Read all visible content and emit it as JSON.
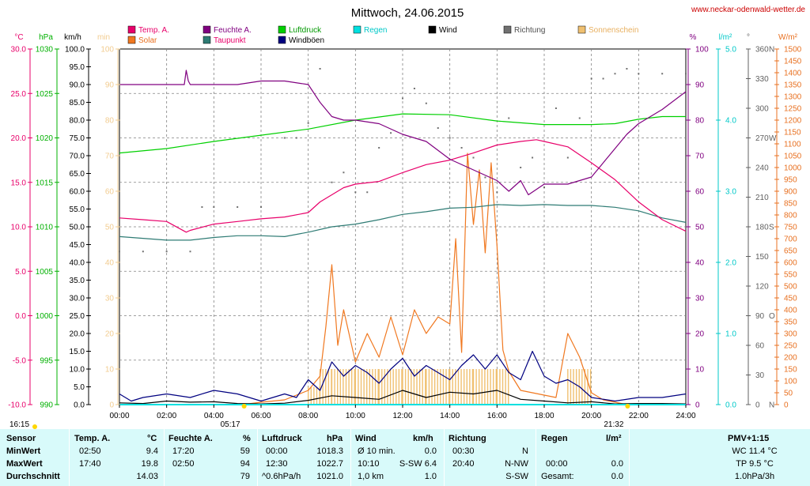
{
  "title": "Mittwoch, 24.06.2015",
  "source_url": "www.neckar-odenwald-wetter.de",
  "legend": [
    {
      "label": "Temp. A.",
      "color": "#e8006a",
      "labelColor": "#e8006a"
    },
    {
      "label": "Feuchte A.",
      "color": "#800080",
      "labelColor": "#800080"
    },
    {
      "label": "Luftdruck",
      "color": "#00d000",
      "labelColor": "#009900"
    },
    {
      "label": "Regen",
      "color": "#00e0e0",
      "labelColor": "#00c8c8"
    },
    {
      "label": "Wind",
      "color": "#000000",
      "labelColor": "#000000"
    },
    {
      "label": "Richtung",
      "color": "#707070",
      "labelColor": "#505050"
    },
    {
      "label": "Sonnenschein",
      "color": "#f0c070",
      "labelColor": "#e8b060"
    },
    {
      "label": "Solar",
      "color": "#f07820",
      "labelColor": "#e87020"
    },
    {
      "label": "Taupunkt",
      "color": "#2e7b74",
      "labelColor": "#e8006a"
    },
    {
      "label": "Windböen",
      "color": "#000080",
      "labelColor": "#000000"
    }
  ],
  "axis_units": {
    "temp": "°C",
    "press": "hPa",
    "wind": "km/h",
    "sun": "min",
    "hum": "%",
    "rain": "l/m²",
    "dir": "°",
    "solar": "W/m²"
  },
  "axis_ticks": {
    "temp": [
      "-10.0",
      "-5.0",
      "0.0",
      "5.0",
      "10.0",
      "15.0",
      "20.0",
      "25.0",
      "30.0"
    ],
    "press": [
      "990",
      "995",
      "1000",
      "1005",
      "1010",
      "1015",
      "1020",
      "1025",
      "1030"
    ],
    "wind": [
      "0.0",
      "5.0",
      "10.0",
      "15.0",
      "20.0",
      "25.0",
      "30.0",
      "35.0",
      "40.0",
      "45.0",
      "50.0",
      "55.0",
      "60.0",
      "65.0",
      "70.0",
      "75.0",
      "80.0",
      "85.0",
      "90.0",
      "95.0",
      "100.0"
    ],
    "sun": [
      "0",
      "10",
      "20",
      "30",
      "40",
      "50",
      "60",
      "70",
      "80",
      "90",
      "100"
    ],
    "hum": [
      "0",
      "10",
      "20",
      "30",
      "40",
      "50",
      "60",
      "70",
      "80",
      "90",
      "100"
    ],
    "rain": [
      "0.0",
      "1.0",
      "2.0",
      "3.0",
      "4.0",
      "5.0"
    ],
    "dir": [
      "0",
      "30",
      "60",
      "90",
      "120",
      "150",
      "180",
      "210",
      "240",
      "270",
      "300",
      "330",
      "360"
    ],
    "dir_letters": [
      "N",
      "O",
      "S",
      "W",
      "N"
    ],
    "solar": [
      "0",
      "50",
      "100",
      "150",
      "200",
      "250",
      "300",
      "350",
      "400",
      "450",
      "500",
      "550",
      "600",
      "650",
      "700",
      "750",
      "800",
      "850",
      "900",
      "950",
      "1000",
      "1050",
      "1100",
      "1150",
      "1200",
      "1250",
      "1300",
      "1350",
      "1400",
      "1450",
      "1500"
    ],
    "time": [
      "00:00",
      "02:00",
      "04:00",
      "06:00",
      "08:00",
      "10:00",
      "12:00",
      "14:00",
      "16:00",
      "18:00",
      "20:00",
      "22:00",
      "24:00"
    ]
  },
  "sun_events": {
    "sunrise": "05:17",
    "sunset": "21:32",
    "daylength": "16:15"
  },
  "chart_data": {
    "type": "line",
    "title": "Mittwoch, 24.06.2015",
    "x_range": [
      "00:00",
      "24:00"
    ],
    "series": [
      {
        "name": "Temp. A.",
        "unit": "°C",
        "color": "#e8006a",
        "axis": "temp",
        "ylim": [
          -10,
          30
        ],
        "x": [
          0,
          1,
          2,
          2.83,
          3,
          4,
          5,
          6,
          7,
          8,
          8.5,
          9,
          9.5,
          10,
          11,
          12,
          13,
          14,
          15,
          16,
          17,
          17.67,
          18,
          19,
          20,
          21,
          22,
          23,
          24
        ],
        "y": [
          11.0,
          10.8,
          10.6,
          9.4,
          9.6,
          10.3,
          10.6,
          10.9,
          11.1,
          11.6,
          12.8,
          13.6,
          14.4,
          14.8,
          15.1,
          16.1,
          17.0,
          17.5,
          18.3,
          19.2,
          19.6,
          19.8,
          19.6,
          19.0,
          17.2,
          15.3,
          12.8,
          10.8,
          9.5
        ]
      },
      {
        "name": "Feuchte A.",
        "unit": "%",
        "color": "#800080",
        "axis": "hum",
        "ylim": [
          0,
          100
        ],
        "x": [
          0,
          1,
          2,
          2.75,
          2.83,
          2.92,
          3,
          4,
          5,
          6,
          7,
          8,
          8.5,
          9,
          9.5,
          10,
          11,
          12,
          13,
          14,
          15,
          16,
          16.5,
          17,
          17.33,
          18,
          19,
          20,
          21,
          21.5,
          22,
          23,
          24
        ],
        "y": [
          90,
          90,
          90,
          90,
          94,
          91,
          90,
          90,
          90,
          91,
          91,
          90,
          85,
          81,
          80,
          80,
          79,
          76,
          74,
          69,
          66,
          63,
          60,
          63,
          59,
          62,
          62,
          64,
          72,
          76,
          79,
          83,
          88
        ]
      },
      {
        "name": "Luftdruck",
        "unit": "hPa",
        "color": "#00d000",
        "axis": "press",
        "ylim": [
          990,
          1030
        ],
        "x": [
          0,
          2,
          4,
          6,
          8,
          10,
          12,
          14,
          16,
          18,
          20,
          21,
          22,
          23,
          24
        ],
        "y": [
          1018.3,
          1018.8,
          1019.6,
          1020.3,
          1021.0,
          1022.0,
          1022.7,
          1022.6,
          1021.9,
          1021.5,
          1021.5,
          1021.6,
          1022.1,
          1022.4,
          1022.4
        ]
      },
      {
        "name": "Taupunkt",
        "unit": "°C",
        "color": "#2e7b74",
        "axis": "temp",
        "ylim": [
          -10,
          30
        ],
        "x": [
          0,
          1,
          2,
          3,
          4,
          5,
          6,
          7,
          8,
          9,
          10,
          11,
          12,
          13,
          14,
          15,
          16,
          17,
          18,
          19,
          20,
          21,
          22,
          23,
          24
        ],
        "y": [
          8.9,
          8.7,
          8.5,
          8.5,
          8.8,
          9.0,
          9.0,
          8.9,
          9.4,
          10.0,
          10.3,
          10.8,
          11.4,
          11.7,
          12.1,
          12.2,
          12.5,
          12.4,
          12.5,
          12.4,
          12.4,
          12.2,
          11.8,
          11.0,
          10.5
        ]
      },
      {
        "name": "Wind",
        "unit": "km/h",
        "color": "#000000",
        "axis": "wind",
        "ylim": [
          0,
          100
        ],
        "x": [
          0,
          1,
          2,
          3,
          4,
          5,
          6,
          7,
          8,
          9,
          10,
          11,
          12,
          13,
          14,
          15,
          16,
          17,
          18,
          19,
          20,
          21,
          22,
          23,
          24
        ],
        "y": [
          0.5,
          0.3,
          1.0,
          0.7,
          0.8,
          0.3,
          0.2,
          0.4,
          1.2,
          2.5,
          2.0,
          1.5,
          4.0,
          2.0,
          3.5,
          3.0,
          4.0,
          1.5,
          1.0,
          0.5,
          0.8,
          0.2,
          0.3,
          0.3,
          0.2
        ]
      },
      {
        "name": "Windböen",
        "unit": "km/h",
        "color": "#000080",
        "axis": "wind",
        "ylim": [
          0,
          100
        ],
        "x": [
          0,
          0.5,
          1,
          2,
          3,
          4,
          5,
          6,
          7,
          7.5,
          8,
          8.5,
          9,
          9.5,
          10,
          10.5,
          11,
          11.5,
          12,
          12.5,
          13,
          13.5,
          14,
          14.5,
          15,
          15.5,
          16,
          16.5,
          17,
          17.5,
          18,
          18.5,
          19,
          19.5,
          20,
          21,
          22,
          23,
          24
        ],
        "y": [
          3,
          1,
          2,
          3,
          2,
          4,
          3,
          1,
          3,
          2,
          7,
          4,
          12,
          8,
          11,
          9,
          6,
          10,
          13,
          8,
          11,
          9,
          7,
          11,
          14,
          10,
          14,
          9,
          7,
          15,
          8,
          6,
          7,
          5,
          2,
          1,
          2,
          2,
          3
        ]
      },
      {
        "name": "Solar",
        "unit": "W/m²",
        "color": "#f07820",
        "axis": "solar",
        "ylim": [
          0,
          1500
        ],
        "x": [
          0,
          5.2,
          6,
          7,
          8,
          8.5,
          8.75,
          9,
          9.25,
          9.5,
          10,
          10.5,
          11,
          11.5,
          12,
          12.5,
          13,
          13.5,
          14,
          14.25,
          14.5,
          14.75,
          15,
          15.25,
          15.5,
          15.75,
          16,
          16.25,
          16.5,
          17,
          18,
          18.5,
          19,
          19.5,
          20,
          20.5,
          21,
          21.5,
          22,
          24
        ],
        "y": [
          0,
          0,
          10,
          20,
          60,
          120,
          330,
          590,
          250,
          400,
          180,
          300,
          200,
          370,
          210,
          400,
          300,
          370,
          340,
          700,
          220,
          1060,
          760,
          990,
          640,
          1020,
          670,
          230,
          140,
          60,
          40,
          30,
          300,
          200,
          50,
          20,
          10,
          0,
          0,
          0
        ]
      },
      {
        "name": "Sonnenschein",
        "unit": "min",
        "color": "#f0c070",
        "axis": "sun",
        "ylim": [
          0,
          100
        ],
        "x": [
          8,
          8.5,
          9,
          10,
          11,
          12,
          13,
          14,
          15,
          16,
          16.5,
          19,
          20
        ],
        "y": [
          5,
          10,
          10,
          10,
          10,
          10,
          10,
          10,
          10,
          10,
          0,
          10,
          0
        ]
      },
      {
        "name": "Richtung",
        "unit": "°",
        "color": "#707070",
        "axis": "dir",
        "ylim": [
          0,
          360
        ],
        "x": [
          0,
          1,
          2,
          3,
          3.5,
          4,
          5,
          6,
          7,
          7.5,
          8,
          8.5,
          9,
          9.5,
          10,
          10.5,
          11,
          11.5,
          12,
          12.5,
          13,
          13.5,
          14,
          14.5,
          15,
          15.5,
          16,
          16.5,
          17,
          17.5,
          18,
          18.5,
          19,
          19.5,
          20,
          20.5,
          21,
          21.5,
          22,
          23,
          24
        ],
        "y": [
          155,
          155,
          155,
          155,
          200,
          200,
          200,
          200,
          270,
          270,
          285,
          340,
          225,
          235,
          215,
          215,
          260,
          275,
          310,
          320,
          305,
          280,
          270,
          260,
          250,
          230,
          215,
          290,
          240,
          250,
          220,
          300,
          250,
          290,
          330,
          330,
          335,
          340,
          335,
          335,
          335
        ]
      },
      {
        "name": "Regen",
        "unit": "l/m²",
        "color": "#00e0e0",
        "axis": "rain",
        "ylim": [
          0,
          5
        ],
        "x": [
          0,
          24
        ],
        "y": [
          0,
          0
        ]
      }
    ]
  },
  "stats": {
    "header": {
      "sensor": "Sensor",
      "temp": "Temp. A.",
      "temp_unit": "°C",
      "hum": "Feuchte A.",
      "hum_unit": "%",
      "press": "Luftdruck",
      "press_unit": "hPa",
      "wind": "Wind",
      "wind_unit": "km/h",
      "dir": "Richtung",
      "rain": "Regen",
      "rain_unit": "l/m²",
      "pmv": "PMV+1:15"
    },
    "rows": [
      {
        "label": "MinWert",
        "temp_time": "02:50",
        "temp_val": "9.4",
        "hum_time": "17:20",
        "hum_val": "59",
        "press_time": "00:00",
        "press_val": "1018.3",
        "wind_time": "Ø 10 min.",
        "wind_val": "0.0",
        "dir_time": "00:30",
        "dir_val": "N",
        "rain_time": "",
        "rain_val": "",
        "pmv": "WC 11.4 °C"
      },
      {
        "label": "MaxWert",
        "temp_time": "17:40",
        "temp_val": "19.8",
        "hum_time": "02:50",
        "hum_val": "94",
        "press_time": "12:30",
        "press_val": "1022.7",
        "wind_time": "10:10",
        "wind_mid": "S-SW 6.4",
        "wind_val": "",
        "dir_time": "20:40",
        "dir_val": "N-NW",
        "rain_time": "00:00",
        "rain_val": "0.0",
        "pmv": "TP 9.5 °C"
      },
      {
        "label": "Durchschnitt",
        "temp_time": "",
        "temp_val": "14.03",
        "hum_time": "",
        "hum_val": "79",
        "press_time": "^0.6hPa/h",
        "press_val": "1021.0",
        "wind_time": "1,0 km",
        "wind_val": "1.0",
        "dir_time": "",
        "dir_val": "S-SW",
        "rain_time": "Gesamt:",
        "rain_val": "0.0",
        "pmv": "1.0hPa/3h"
      }
    ]
  }
}
